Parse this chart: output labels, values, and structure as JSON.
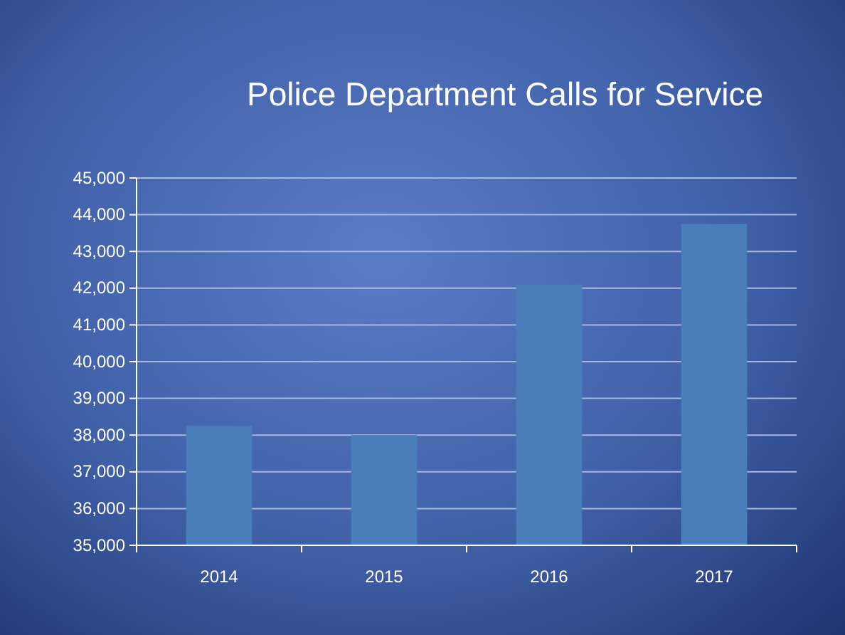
{
  "chart_data": {
    "type": "bar",
    "title": "Police Department Calls for Service",
    "categories": [
      "2014",
      "2015",
      "2016",
      "2017"
    ],
    "values": [
      38250,
      38000,
      42100,
      43750
    ],
    "color": "#4a7ebb",
    "ylim": [
      35000,
      45000
    ],
    "yticks": [
      {
        "value": 35000,
        "label": "35,000"
      },
      {
        "value": 36000,
        "label": "36,000"
      },
      {
        "value": 37000,
        "label": "37,000"
      },
      {
        "value": 38000,
        "label": "38,000"
      },
      {
        "value": 39000,
        "label": "39,000"
      },
      {
        "value": 40000,
        "label": "40,000"
      },
      {
        "value": 41000,
        "label": "41,000"
      },
      {
        "value": 42000,
        "label": "42,000"
      },
      {
        "value": 43000,
        "label": "43,000"
      },
      {
        "value": 44000,
        "label": "44,000"
      },
      {
        "value": 45000,
        "label": "45,000"
      }
    ],
    "grid": "y"
  }
}
